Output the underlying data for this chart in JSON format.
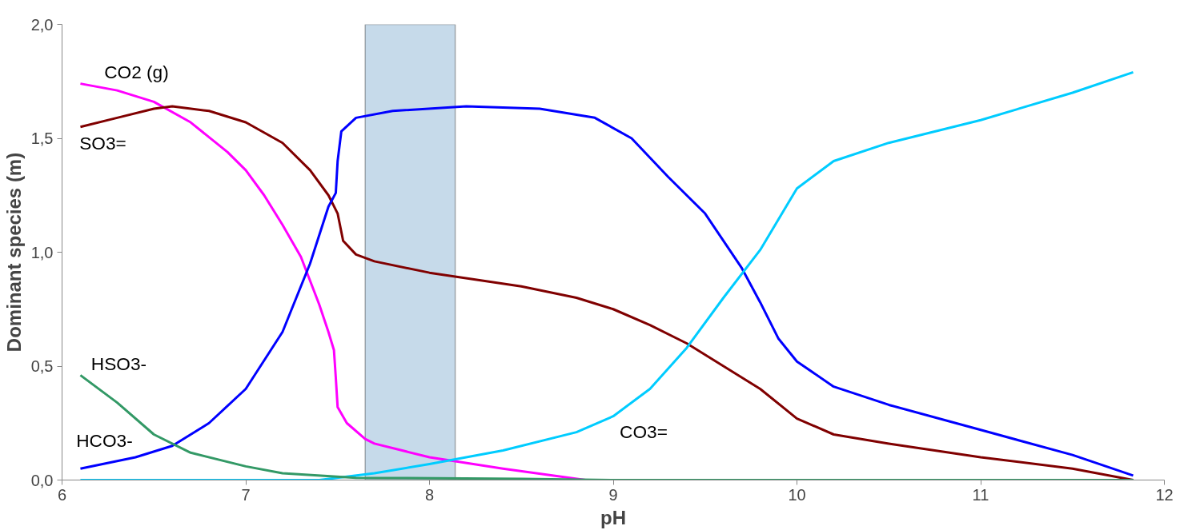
{
  "chart_data": {
    "type": "line",
    "xlabel": "pH",
    "ylabel": "Dominant species (m)",
    "xlim": [
      6,
      12
    ],
    "ylim": [
      0,
      2.0
    ],
    "xticks": [
      6,
      7,
      8,
      9,
      10,
      11,
      12
    ],
    "yticks": [
      {
        "value": 0,
        "label": "0,0"
      },
      {
        "value": 0.5,
        "label": "0,5"
      },
      {
        "value": 1.0,
        "label": "1,0"
      },
      {
        "value": 1.5,
        "label": "1,5"
      },
      {
        "value": 2.0,
        "label": "2,0"
      }
    ],
    "grid": false,
    "legend": false,
    "marker": "none",
    "line_style": "solid",
    "bands": [
      {
        "axis": "x",
        "from": 7.65,
        "to": 8.14,
        "color": "#b3cde3"
      }
    ],
    "series": [
      {
        "name": "CO2 (g)",
        "color": "#ff00ff",
        "x": [
          6.1,
          6.3,
          6.5,
          6.7,
          6.9,
          7.0,
          7.1,
          7.2,
          7.3,
          7.4,
          7.45,
          7.48,
          7.49,
          7.5,
          7.55,
          7.65,
          7.7,
          8.0,
          8.4,
          8.85
        ],
        "values": [
          1.74,
          1.71,
          1.66,
          1.57,
          1.44,
          1.36,
          1.25,
          1.12,
          0.98,
          0.77,
          0.65,
          0.57,
          0.45,
          0.32,
          0.25,
          0.18,
          0.16,
          0.1,
          0.05,
          0.0
        ]
      },
      {
        "name": "SO3=",
        "color": "#800000",
        "x": [
          6.1,
          6.3,
          6.5,
          6.6,
          6.8,
          7.0,
          7.2,
          7.35,
          7.45,
          7.5,
          7.53,
          7.6,
          7.7,
          8.0,
          8.5,
          8.8,
          9.0,
          9.2,
          9.4,
          9.6,
          9.8,
          10.0,
          10.2,
          10.5,
          11.0,
          11.5,
          11.83
        ],
        "values": [
          1.55,
          1.59,
          1.63,
          1.64,
          1.62,
          1.57,
          1.48,
          1.36,
          1.25,
          1.17,
          1.05,
          0.99,
          0.96,
          0.91,
          0.85,
          0.8,
          0.75,
          0.68,
          0.6,
          0.5,
          0.4,
          0.27,
          0.2,
          0.16,
          0.1,
          0.05,
          0.0
        ]
      },
      {
        "name": "HCO3-",
        "color": "#0000ff",
        "x": [
          6.1,
          6.4,
          6.6,
          6.8,
          7.0,
          7.2,
          7.35,
          7.45,
          7.49,
          7.5,
          7.52,
          7.6,
          7.8,
          8.2,
          8.6,
          8.9,
          9.1,
          9.3,
          9.5,
          9.7,
          9.8,
          9.9,
          10.0,
          10.2,
          10.5,
          11.0,
          11.5,
          11.83
        ],
        "values": [
          0.05,
          0.1,
          0.15,
          0.25,
          0.4,
          0.65,
          0.95,
          1.2,
          1.26,
          1.4,
          1.53,
          1.59,
          1.62,
          1.64,
          1.63,
          1.59,
          1.5,
          1.33,
          1.17,
          0.93,
          0.78,
          0.62,
          0.52,
          0.41,
          0.33,
          0.22,
          0.11,
          0.02
        ]
      },
      {
        "name": "CO3=",
        "color": "#00ccff",
        "x": [
          6.1,
          7.4,
          7.7,
          8.0,
          8.4,
          8.8,
          9.0,
          9.2,
          9.4,
          9.6,
          9.8,
          10.0,
          10.2,
          10.5,
          11.0,
          11.5,
          11.83
        ],
        "values": [
          0,
          0,
          0.03,
          0.07,
          0.13,
          0.21,
          0.28,
          0.4,
          0.58,
          0.8,
          1.01,
          1.28,
          1.4,
          1.48,
          1.58,
          1.7,
          1.79
        ]
      },
      {
        "name": "HSO3-",
        "color": "#339966",
        "x": [
          6.1,
          6.3,
          6.5,
          6.7,
          7.0,
          7.2,
          7.6,
          8.5,
          9.0,
          11.83
        ],
        "values": [
          0.46,
          0.34,
          0.2,
          0.12,
          0.06,
          0.03,
          0.01,
          0.005,
          0.0,
          0.0
        ]
      }
    ]
  }
}
